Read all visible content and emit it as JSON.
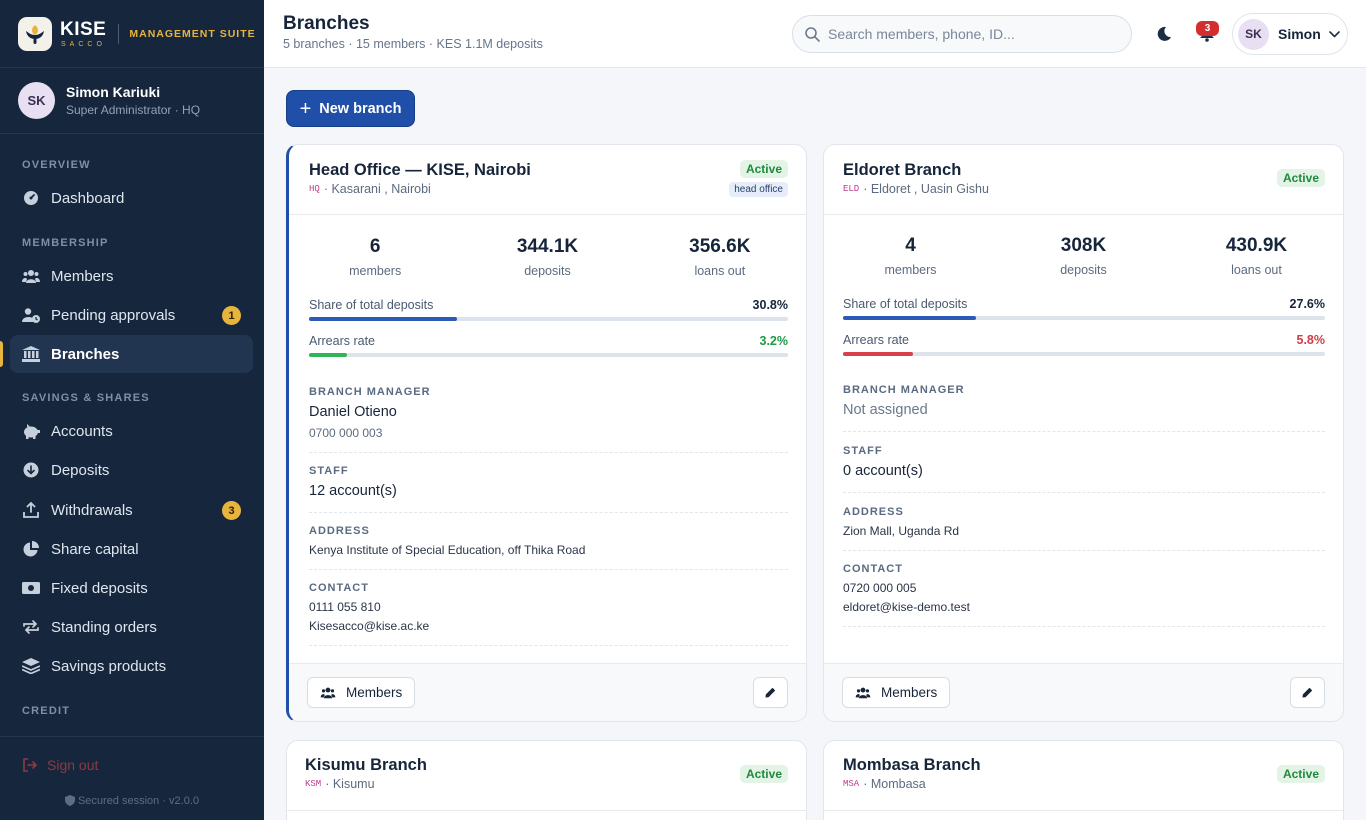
{
  "brand": {
    "name": "KISE",
    "sub": "SACCO",
    "suite": "MANAGEMENT SUITE"
  },
  "user": {
    "initials": "SK",
    "name": "Simon Kariuki",
    "role": "Super Administrator · HQ",
    "short_name": "Simon"
  },
  "nav": {
    "overview": "OVERVIEW",
    "dashboard": "Dashboard",
    "membership": "MEMBERSHIP",
    "members": "Members",
    "pending": "Pending approvals",
    "pending_count": "1",
    "branches": "Branches",
    "savings": "SAVINGS & SHARES",
    "accounts": "Accounts",
    "deposits": "Deposits",
    "withdrawals": "Withdrawals",
    "withdrawals_count": "3",
    "share_capital": "Share capital",
    "fixed_deposits": "Fixed deposits",
    "standing_orders": "Standing orders",
    "savings_products": "Savings products",
    "credit": "CREDIT",
    "signout": "Sign out",
    "secured": "Secured session · v2.0.0"
  },
  "header": {
    "title": "Branches",
    "subtitle": "5 branches · 15 members · KES 1.1M deposits",
    "search_placeholder": "Search members, phone, ID...",
    "notifications": "3"
  },
  "actions": {
    "new_branch": "New branch"
  },
  "labels": {
    "members": "members",
    "deposits": "deposits",
    "loans_out": "loans out",
    "share": "Share of total deposits",
    "arrears": "Arrears rate",
    "manager": "BRANCH MANAGER",
    "staff": "STAFF",
    "address": "ADDRESS",
    "contact": "CONTACT",
    "members_button": "Members",
    "active": "Active",
    "head_office": "head office"
  },
  "colors": {
    "arrears_low": "#2fb456",
    "arrears_high": "#d9414a",
    "share": "#2b5bb5"
  },
  "branches": [
    {
      "name": "Head Office — KISE, Nairobi",
      "code": "HQ",
      "location": "Kasarani , Nairobi",
      "members": "6",
      "deposits": "344.1K",
      "loans": "356.6K",
      "share_pct": "30.8%",
      "share": 0.308,
      "arrears_pct": "3.2%",
      "arrears": 0.032,
      "manager": "Daniel Otieno",
      "manager_phone": "0700 000 003",
      "staff": "12 account(s)",
      "address": "Kenya Institute of Special Education, off Thika Road",
      "phone": "0111 055 810",
      "email": "Kisesacco@kise.ac.ke"
    },
    {
      "name": "Eldoret Branch",
      "code": "ELD",
      "location": "Eldoret , Uasin Gishu",
      "members": "4",
      "deposits": "308K",
      "loans": "430.9K",
      "share_pct": "27.6%",
      "share": 0.276,
      "arrears_pct": "5.8%",
      "arrears": 0.058,
      "manager": "Not assigned",
      "staff": "0 account(s)",
      "address": "Zion Mall, Uganda Rd",
      "phone": "0720 000 005",
      "email": "eldoret@kise-demo.test"
    },
    {
      "name": "Kisumu Branch",
      "code": "KSM",
      "location": "Kisumu"
    },
    {
      "name": "Mombasa Branch",
      "code": "MSA",
      "location": "Mombasa"
    }
  ]
}
